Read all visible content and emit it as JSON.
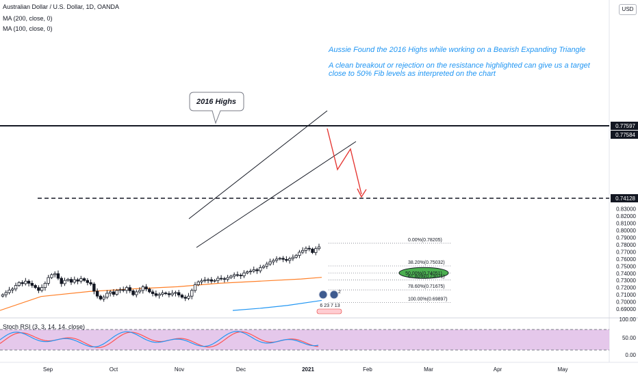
{
  "legend": {
    "symbol": "Australian Dollar / U.S. Dollar, 1D, OANDA",
    "ma200": "MA (200, close, 0)",
    "ma100": "MA (100, close, 0)"
  },
  "annotations": {
    "headline": "Aussie Found the 2016 Highs while working on a Bearish Expanding Triangle",
    "note_line1": "A clean breakout or rejection on the resistance highlighted can give us a target",
    "note_line2": "close to 50% Fib levels as interpreted on the chart",
    "callout": "2016 Highs"
  },
  "price_scale": {
    "currency": "USD",
    "ticks": [
      "0.69000",
      "0.70000",
      "0.71000",
      "0.72000",
      "0.73000",
      "0.74000",
      "0.75000",
      "0.76000",
      "0.77000",
      "0.78000",
      "0.79000",
      "0.80000",
      "0.81000",
      "0.82000",
      "0.83000"
    ],
    "badges": [
      {
        "text": "0.77597",
        "color": "#131722"
      },
      {
        "text": "0.77584",
        "color": "#131722"
      },
      {
        "text": "0.74128",
        "color": "#131722"
      }
    ]
  },
  "fib_levels": [
    {
      "label": "0.00%(0.78205)",
      "price": 0.78205
    },
    {
      "label": "38.20%(0.75032)",
      "price": 0.75032
    },
    {
      "label": "50.00%(0.74051)",
      "price": 0.74051
    },
    {
      "label": "61.80%(0.73071)",
      "price": 0.73071
    },
    {
      "label": "78.60%(0.71675)",
      "price": 0.71675
    },
    {
      "label": "100.00%(0.69897)",
      "price": 0.69897
    }
  ],
  "time_axis": [
    "Sep",
    "Oct",
    "Nov",
    "Dec",
    "2021",
    "Feb",
    "Mar",
    "Apr",
    "May"
  ],
  "rsi": {
    "label": "Stoch RSI (3, 3, 14, 14, close)",
    "ticks": [
      "100.00",
      "50.00",
      "0.00"
    ],
    "k_color": "#2196f3",
    "d_color": "#ff5252"
  },
  "events": {
    "counts": "6 23 7 13",
    "badge": "2"
  },
  "colors": {
    "up": "#ffffff",
    "down": "#131722",
    "ma200": "#2196f3",
    "ma100": "#ff7f27",
    "projection": "#e53935",
    "fib": "#787b86",
    "fib50_fill": "#4caf50",
    "rsi_band": "#e1bee7"
  },
  "chart_data": {
    "type": "candlestick",
    "symbol": "Australian Dollar / U.S. Dollar, 1D, OANDA",
    "x_labels": [
      "Sep",
      "Oct",
      "Nov",
      "Dec",
      "2021",
      "Feb",
      "Mar",
      "Apr",
      "May"
    ],
    "ylim": [
      0.6855,
      0.8375
    ],
    "y_ticks": [
      0.69,
      0.7,
      0.71,
      0.72,
      0.73,
      0.74,
      0.75,
      0.76,
      0.77,
      0.78,
      0.79,
      0.8,
      0.81,
      0.82,
      0.83
    ],
    "resistance": 0.77597,
    "support": 0.74128,
    "series_close": [
      0.71,
      0.713,
      0.7165,
      0.718,
      0.723,
      0.727,
      0.7255,
      0.729,
      0.726,
      0.723,
      0.72,
      0.716,
      0.72,
      0.726,
      0.734,
      0.738,
      0.7395,
      0.733,
      0.7255,
      0.73,
      0.7315,
      0.7275,
      0.731,
      0.729,
      0.7325,
      0.73,
      0.727,
      0.725,
      0.715,
      0.708,
      0.704,
      0.7065,
      0.712,
      0.714,
      0.7105,
      0.716,
      0.717,
      0.716,
      0.72,
      0.7155,
      0.71,
      0.714,
      0.716,
      0.721,
      0.718,
      0.714,
      0.7115,
      0.709,
      0.7105,
      0.7125,
      0.7115,
      0.71,
      0.712,
      0.713,
      0.7095,
      0.7065,
      0.705,
      0.708,
      0.716,
      0.724,
      0.728,
      0.7295,
      0.7305,
      0.731,
      0.729,
      0.73,
      0.733,
      0.7325,
      0.7315,
      0.734,
      0.736,
      0.738,
      0.7375,
      0.7365,
      0.7405,
      0.742,
      0.743,
      0.745,
      0.7435,
      0.748,
      0.75,
      0.753,
      0.756,
      0.758,
      0.76,
      0.761,
      0.7595,
      0.758,
      0.7605,
      0.7625,
      0.765,
      0.7695,
      0.772,
      0.775,
      0.774,
      0.769,
      0.7745,
      0.777
    ],
    "ma100": [
      [
        0,
        0.688
      ],
      [
        60,
        0.7075
      ],
      [
        130,
        0.7145
      ],
      [
        200,
        0.7185
      ],
      [
        260,
        0.7212
      ],
      [
        320,
        0.726
      ],
      [
        380,
        0.729
      ],
      [
        440,
        0.732
      ],
      [
        470,
        0.7343
      ]
    ],
    "ma200": [
      [
        340,
        0.688
      ],
      [
        380,
        0.691
      ],
      [
        420,
        0.695
      ],
      [
        470,
        0.702
      ]
    ]
  }
}
